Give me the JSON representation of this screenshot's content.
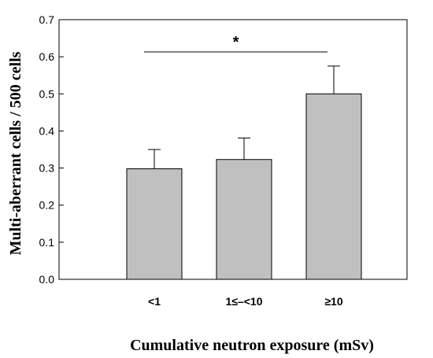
{
  "chart_data": {
    "type": "bar",
    "categories": [
      "<1",
      "1≤–<10",
      "≥10"
    ],
    "values": [
      0.298,
      0.323,
      0.5
    ],
    "errors": [
      0.052,
      0.058,
      0.075
    ],
    "xlabel": "Cumulative neutron exposure (mSv)",
    "ylabel": "Multi-aberrant cells / 500 cells",
    "ylim": [
      0,
      0.7
    ],
    "yticks": [
      0.0,
      0.1,
      0.2,
      0.3,
      0.4,
      0.5,
      0.6,
      0.7
    ],
    "ytick_labels": [
      "0.0",
      "0.1",
      "0.2",
      "0.3",
      "0.4",
      "0.5",
      "0.6",
      "0.7"
    ],
    "grid": false,
    "bar_color": "#c0c0c0",
    "significance": {
      "from": "<1",
      "to": "≥10",
      "marker": "*"
    }
  }
}
